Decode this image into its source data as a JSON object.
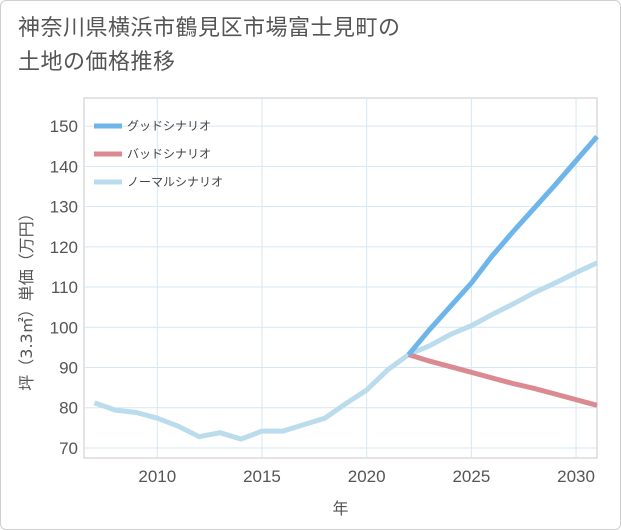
{
  "chart_data": {
    "type": "line",
    "title_line1": "神奈川県横浜市鶴見区市場富士見町の",
    "title_line2": "土地の価格推移",
    "xlabel": "年",
    "ylabel": "坪（3.3㎡）単価（万円）",
    "xlim": [
      2006.5,
      2031
    ],
    "ylim": [
      67.5,
      157
    ],
    "x_ticks": [
      2010,
      2015,
      2020,
      2025,
      2030
    ],
    "y_ticks": [
      70,
      80,
      90,
      100,
      110,
      120,
      130,
      140,
      150
    ],
    "grid": true,
    "legend_position": "top-left",
    "series": [
      {
        "name": "グッドシナリオ",
        "color": "#6db5ea",
        "x": [
          2022,
          2023,
          2024,
          2025,
          2026,
          2027,
          2028,
          2029,
          2030,
          2031
        ],
        "values": [
          93.2,
          99.4,
          105.2,
          111.0,
          117.8,
          123.8,
          129.6,
          135.4,
          141.4,
          147.4
        ]
      },
      {
        "name": "バッドシナリオ",
        "color": "#db8a92",
        "x": [
          2022,
          2023,
          2024,
          2025,
          2026,
          2027,
          2028,
          2029,
          2030,
          2031
        ],
        "values": [
          93.2,
          91.6,
          90.2,
          88.8,
          87.4,
          86.0,
          84.8,
          83.4,
          82.0,
          80.6
        ]
      },
      {
        "name": "ノーマルシナリオ",
        "color": "#badcec",
        "x": [
          2007,
          2008,
          2009,
          2010,
          2011,
          2012,
          2013,
          2014,
          2015,
          2016,
          2017,
          2018,
          2019,
          2020,
          2021,
          2022,
          2023,
          2024,
          2025,
          2026,
          2027,
          2028,
          2029,
          2030,
          2031
        ],
        "values": [
          81.2,
          79.4,
          78.8,
          77.4,
          75.4,
          72.8,
          73.8,
          72.2,
          74.2,
          74.2,
          75.8,
          77.4,
          81.0,
          84.4,
          89.4,
          93.2,
          95.4,
          98.2,
          100.4,
          103.2,
          105.8,
          108.6,
          111.0,
          113.6,
          116.0
        ]
      }
    ]
  }
}
